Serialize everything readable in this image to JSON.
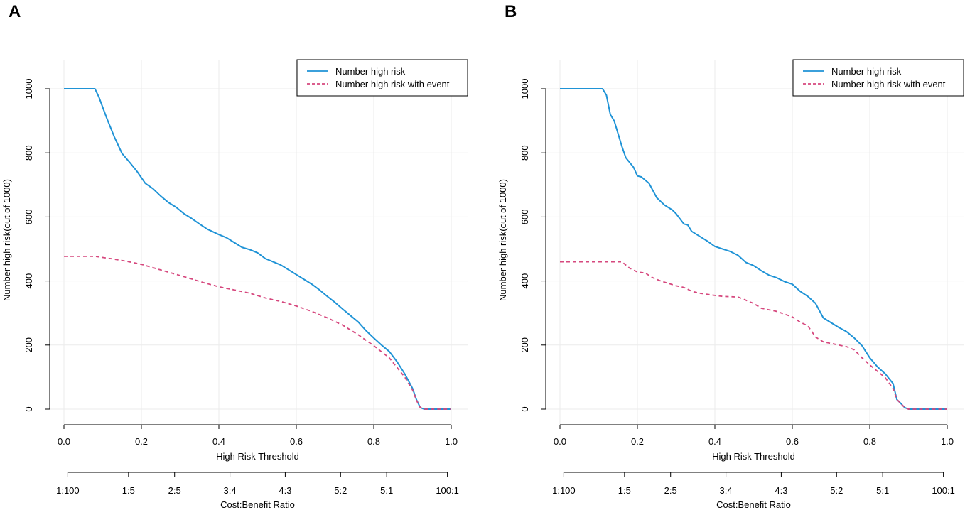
{
  "chart_data": [
    {
      "panel": "A",
      "type": "line",
      "title": "",
      "xlabel": "High Risk Threshold",
      "ylabel": "Number high risk(out of 1000)",
      "xlim": [
        0,
        1
      ],
      "ylim": [
        0,
        1000
      ],
      "x_ticks": [
        "0.0",
        "0.2",
        "0.4",
        "0.6",
        "0.8",
        "1.0"
      ],
      "y_ticks": [
        "0",
        "200",
        "400",
        "600",
        "800",
        "1000"
      ],
      "grid": true,
      "legend_position": "top-right",
      "cost_benefit": {
        "label": "Cost:Benefit Ratio",
        "ticks": [
          {
            "label": "1:100",
            "threshold": 0.0099
          },
          {
            "label": "1:5",
            "threshold": 0.1667
          },
          {
            "label": "2:5",
            "threshold": 0.2857
          },
          {
            "label": "3:4",
            "threshold": 0.4286
          },
          {
            "label": "4:3",
            "threshold": 0.5714
          },
          {
            "label": "5:2",
            "threshold": 0.7143
          },
          {
            "label": "5:1",
            "threshold": 0.8333
          },
          {
            "label": "100:1",
            "threshold": 0.9901
          }
        ]
      },
      "series": [
        {
          "name": "Number high risk",
          "color": "#1f93d6",
          "style": "solid",
          "points": [
            [
              0,
              1000
            ],
            [
              0.08,
              1000
            ],
            [
              0.09,
              975
            ],
            [
              0.11,
              910
            ],
            [
              0.13,
              850
            ],
            [
              0.15,
              798
            ],
            [
              0.17,
              770
            ],
            [
              0.19,
              740
            ],
            [
              0.21,
              705
            ],
            [
              0.23,
              688
            ],
            [
              0.25,
              665
            ],
            [
              0.27,
              645
            ],
            [
              0.29,
              630
            ],
            [
              0.31,
              610
            ],
            [
              0.33,
              595
            ],
            [
              0.35,
              578
            ],
            [
              0.37,
              562
            ],
            [
              0.4,
              545
            ],
            [
              0.42,
              535
            ],
            [
              0.44,
              520
            ],
            [
              0.46,
              505
            ],
            [
              0.48,
              498
            ],
            [
              0.5,
              488
            ],
            [
              0.52,
              470
            ],
            [
              0.54,
              460
            ],
            [
              0.56,
              450
            ],
            [
              0.58,
              435
            ],
            [
              0.6,
              420
            ],
            [
              0.62,
              405
            ],
            [
              0.64,
              390
            ],
            [
              0.66,
              372
            ],
            [
              0.68,
              352
            ],
            [
              0.7,
              333
            ],
            [
              0.72,
              312
            ],
            [
              0.74,
              292
            ],
            [
              0.76,
              272
            ],
            [
              0.78,
              245
            ],
            [
              0.8,
              222
            ],
            [
              0.82,
              200
            ],
            [
              0.84,
              180
            ],
            [
              0.86,
              148
            ],
            [
              0.88,
              110
            ],
            [
              0.9,
              65
            ],
            [
              0.91,
              30
            ],
            [
              0.92,
              5
            ],
            [
              0.93,
              0
            ],
            [
              1.0,
              0
            ]
          ]
        },
        {
          "name": "Number high risk with event",
          "color": "#d6487e",
          "style": "dashed",
          "points": [
            [
              0,
              477
            ],
            [
              0.08,
              477
            ],
            [
              0.12,
              470
            ],
            [
              0.16,
              462
            ],
            [
              0.2,
              452
            ],
            [
              0.24,
              438
            ],
            [
              0.28,
              424
            ],
            [
              0.32,
              410
            ],
            [
              0.36,
              395
            ],
            [
              0.4,
              382
            ],
            [
              0.44,
              372
            ],
            [
              0.48,
              362
            ],
            [
              0.52,
              347
            ],
            [
              0.56,
              336
            ],
            [
              0.6,
              322
            ],
            [
              0.64,
              305
            ],
            [
              0.68,
              285
            ],
            [
              0.72,
              262
            ],
            [
              0.76,
              232
            ],
            [
              0.8,
              198
            ],
            [
              0.84,
              160
            ],
            [
              0.86,
              130
            ],
            [
              0.88,
              100
            ],
            [
              0.9,
              60
            ],
            [
              0.91,
              28
            ],
            [
              0.92,
              5
            ],
            [
              0.93,
              0
            ],
            [
              1.0,
              0
            ]
          ]
        }
      ]
    },
    {
      "panel": "B",
      "type": "line",
      "title": "",
      "xlabel": "High Risk Threshold",
      "ylabel": "Number high risk(out of 1000)",
      "xlim": [
        0,
        1
      ],
      "ylim": [
        0,
        1000
      ],
      "x_ticks": [
        "0.0",
        "0.2",
        "0.4",
        "0.6",
        "0.8",
        "1.0"
      ],
      "y_ticks": [
        "0",
        "200",
        "400",
        "600",
        "800",
        "1000"
      ],
      "grid": true,
      "legend_position": "top-right",
      "cost_benefit": {
        "label": "Cost:Benefit Ratio",
        "ticks": [
          {
            "label": "1:100",
            "threshold": 0.0099
          },
          {
            "label": "1:5",
            "threshold": 0.1667
          },
          {
            "label": "2:5",
            "threshold": 0.2857
          },
          {
            "label": "3:4",
            "threshold": 0.4286
          },
          {
            "label": "4:3",
            "threshold": 0.5714
          },
          {
            "label": "5:2",
            "threshold": 0.7143
          },
          {
            "label": "5:1",
            "threshold": 0.8333
          },
          {
            "label": "100:1",
            "threshold": 0.9901
          }
        ]
      },
      "series": [
        {
          "name": "Number high risk",
          "color": "#1f93d6",
          "style": "solid",
          "points": [
            [
              0,
              1000
            ],
            [
              0.11,
              1000
            ],
            [
              0.12,
              980
            ],
            [
              0.13,
              920
            ],
            [
              0.14,
              900
            ],
            [
              0.15,
              860
            ],
            [
              0.16,
              820
            ],
            [
              0.17,
              785
            ],
            [
              0.19,
              755
            ],
            [
              0.2,
              728
            ],
            [
              0.21,
              725
            ],
            [
              0.23,
              705
            ],
            [
              0.25,
              660
            ],
            [
              0.27,
              637
            ],
            [
              0.29,
              622
            ],
            [
              0.3,
              610
            ],
            [
              0.32,
              578
            ],
            [
              0.33,
              575
            ],
            [
              0.34,
              555
            ],
            [
              0.36,
              540
            ],
            [
              0.38,
              525
            ],
            [
              0.4,
              508
            ],
            [
              0.42,
              500
            ],
            [
              0.44,
              492
            ],
            [
              0.46,
              480
            ],
            [
              0.48,
              458
            ],
            [
              0.5,
              448
            ],
            [
              0.52,
              432
            ],
            [
              0.54,
              418
            ],
            [
              0.56,
              410
            ],
            [
              0.58,
              398
            ],
            [
              0.6,
              390
            ],
            [
              0.62,
              368
            ],
            [
              0.64,
              352
            ],
            [
              0.66,
              330
            ],
            [
              0.68,
              285
            ],
            [
              0.7,
              270
            ],
            [
              0.72,
              255
            ],
            [
              0.74,
              242
            ],
            [
              0.76,
              222
            ],
            [
              0.78,
              198
            ],
            [
              0.8,
              160
            ],
            [
              0.82,
              132
            ],
            [
              0.84,
              110
            ],
            [
              0.86,
              80
            ],
            [
              0.87,
              30
            ],
            [
              0.88,
              18
            ],
            [
              0.89,
              5
            ],
            [
              0.9,
              0
            ],
            [
              1.0,
              0
            ]
          ]
        },
        {
          "name": "Number high risk with event",
          "color": "#d6487e",
          "style": "dashed",
          "points": [
            [
              0,
              460
            ],
            [
              0.16,
              460
            ],
            [
              0.18,
              440
            ],
            [
              0.2,
              428
            ],
            [
              0.22,
              425
            ],
            [
              0.24,
              410
            ],
            [
              0.26,
              400
            ],
            [
              0.3,
              385
            ],
            [
              0.32,
              380
            ],
            [
              0.34,
              368
            ],
            [
              0.36,
              362
            ],
            [
              0.4,
              355
            ],
            [
              0.42,
              352
            ],
            [
              0.46,
              350
            ],
            [
              0.5,
              330
            ],
            [
              0.52,
              315
            ],
            [
              0.56,
              305
            ],
            [
              0.6,
              288
            ],
            [
              0.62,
              272
            ],
            [
              0.64,
              260
            ],
            [
              0.66,
              225
            ],
            [
              0.68,
              210
            ],
            [
              0.72,
              200
            ],
            [
              0.74,
              195
            ],
            [
              0.76,
              185
            ],
            [
              0.78,
              160
            ],
            [
              0.8,
              138
            ],
            [
              0.82,
              118
            ],
            [
              0.84,
              98
            ],
            [
              0.86,
              65
            ],
            [
              0.87,
              30
            ],
            [
              0.88,
              18
            ],
            [
              0.89,
              5
            ],
            [
              0.9,
              0
            ],
            [
              1.0,
              0
            ]
          ]
        }
      ]
    }
  ]
}
